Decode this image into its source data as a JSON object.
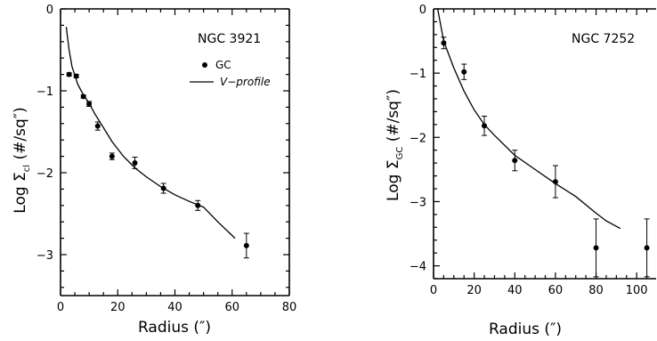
{
  "chart_data": [
    {
      "type": "scatter",
      "title": "NGC 3921",
      "xlabel": "Radius (″)",
      "ylabel_main": "Log Σ",
      "ylabel_sub": "cl",
      "ylabel_unit": "(#/sq″)",
      "xlim": [
        0,
        80
      ],
      "ylim": [
        -3.5,
        0
      ],
      "xticks": [
        0,
        20,
        40,
        60,
        80
      ],
      "yticks": [
        0,
        -1,
        -2,
        -3
      ],
      "legend": {
        "marker_label": "GC",
        "line_label": "V−profile"
      },
      "series": [
        {
          "name": "GC",
          "kind": "points",
          "x": [
            3,
            5.5,
            8,
            10,
            13,
            18,
            26,
            36,
            48,
            65
          ],
          "y": [
            -0.8,
            -0.82,
            -1.07,
            -1.16,
            -1.43,
            -1.8,
            -1.88,
            -2.19,
            -2.4,
            -2.89
          ],
          "err": [
            0.02,
            0.02,
            0.02,
            0.03,
            0.05,
            0.04,
            0.07,
            0.06,
            0.06,
            0.15
          ]
        },
        {
          "name": "V−profile",
          "kind": "line",
          "x": [
            2,
            3,
            4,
            6,
            8,
            10,
            12,
            15,
            18,
            22,
            26,
            30,
            35,
            40,
            45,
            50,
            55,
            61
          ],
          "y": [
            -0.22,
            -0.5,
            -0.7,
            -0.92,
            -1.05,
            -1.15,
            -1.28,
            -1.45,
            -1.62,
            -1.8,
            -1.94,
            -2.05,
            -2.17,
            -2.27,
            -2.35,
            -2.42,
            -2.6,
            -2.8
          ]
        }
      ]
    },
    {
      "type": "scatter",
      "title": "NGC 7252",
      "xlabel": "Radius (″)",
      "ylabel_main": "Log Σ",
      "ylabel_sub": "GC",
      "ylabel_unit": "(#/sq″)",
      "xlim": [
        0,
        110
      ],
      "ylim": [
        -4.2,
        0
      ],
      "xticks": [
        0,
        20,
        40,
        60,
        80,
        100
      ],
      "yticks": [
        0,
        -1,
        -2,
        -3,
        -4
      ],
      "series": [
        {
          "name": "GC",
          "kind": "points",
          "x": [
            5,
            15,
            25,
            40,
            60,
            80,
            105
          ],
          "y": [
            -0.53,
            -0.98,
            -1.82,
            -2.36,
            -2.69,
            -3.72,
            -3.72
          ],
          "err": [
            0.09,
            0.12,
            0.15,
            0.16,
            0.25,
            0.45,
            0.45
          ]
        },
        {
          "name": "V−profile",
          "kind": "line",
          "x": [
            2,
            5,
            10,
            15,
            20,
            25,
            30,
            40,
            50,
            60,
            70,
            80,
            85,
            92
          ],
          "y": [
            0,
            -0.5,
            -0.92,
            -1.28,
            -1.57,
            -1.8,
            -1.97,
            -2.28,
            -2.5,
            -2.72,
            -2.92,
            -3.18,
            -3.3,
            -3.42
          ]
        }
      ]
    }
  ]
}
